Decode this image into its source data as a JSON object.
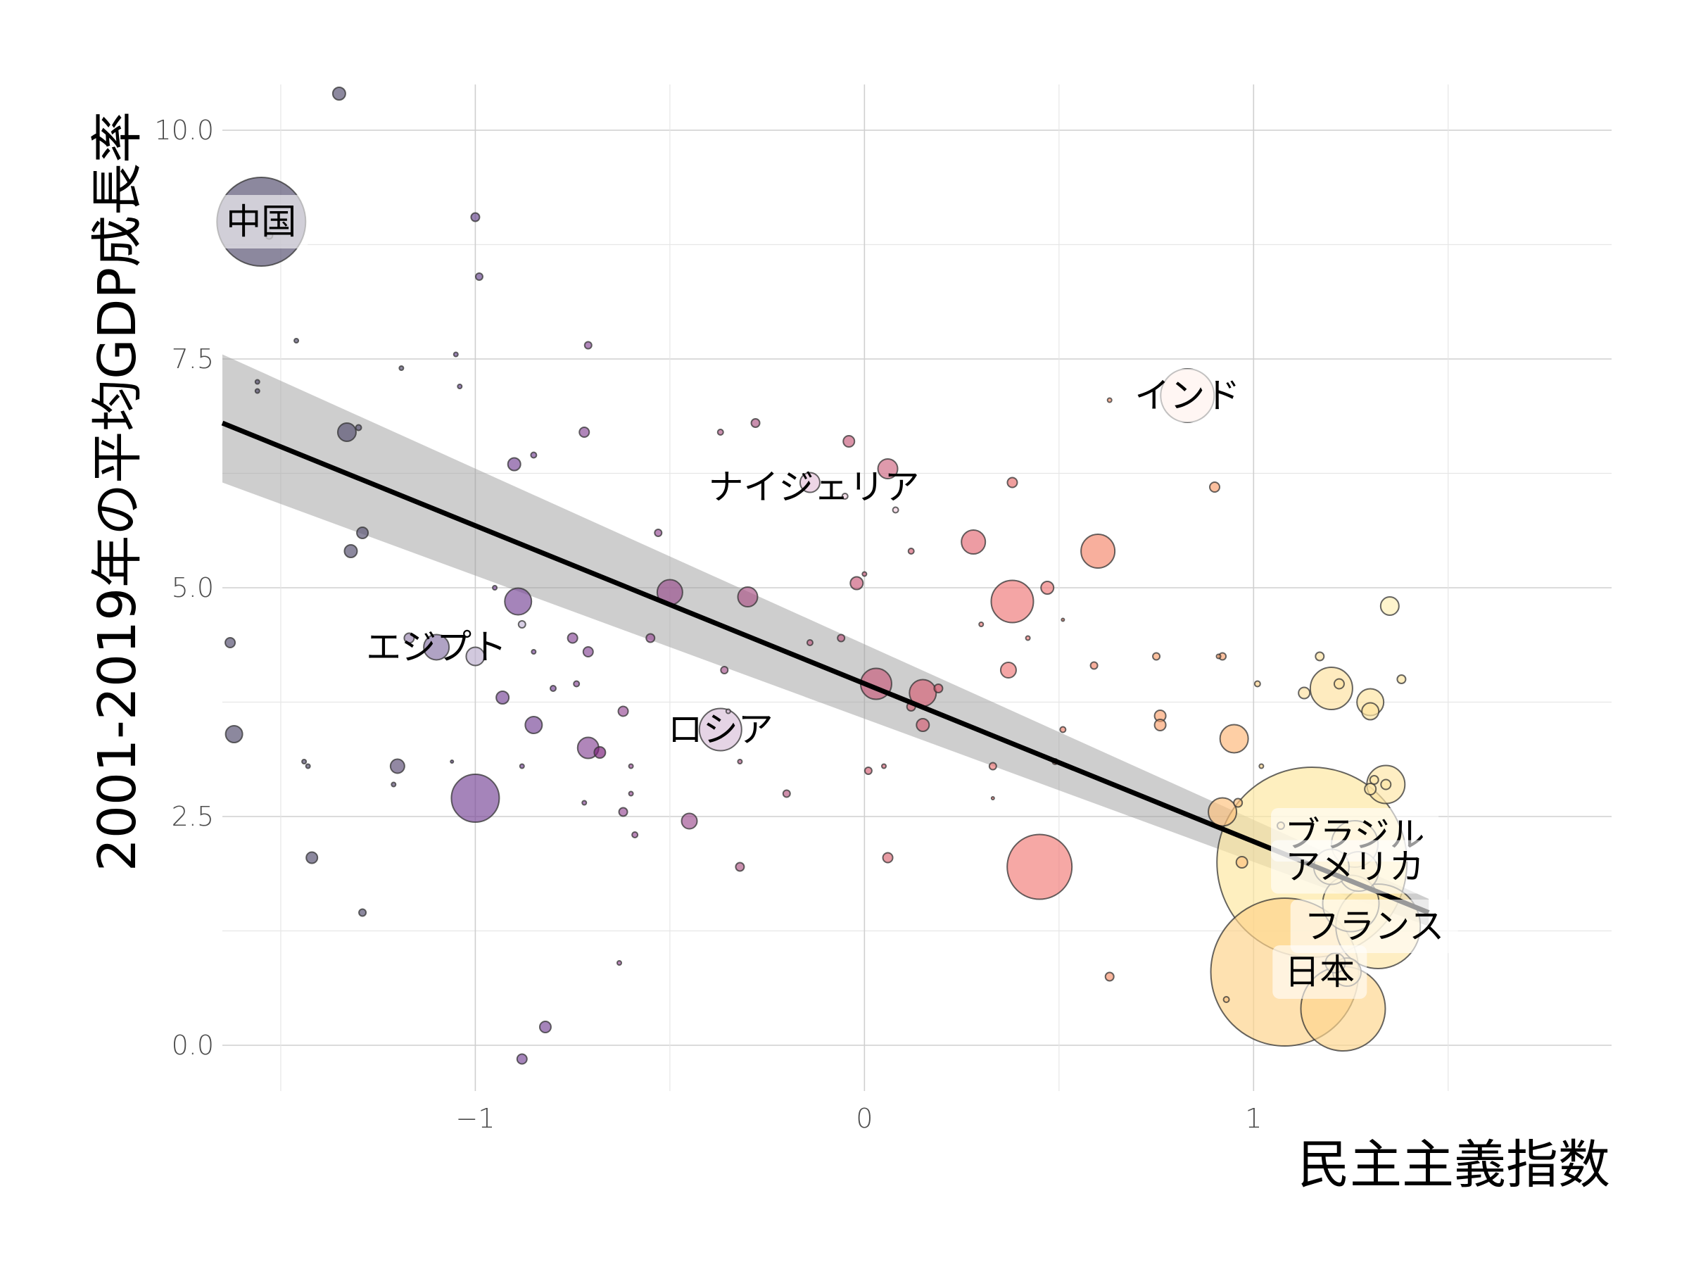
{
  "chart_data": {
    "type": "scatter",
    "xlabel": "民主主義指数",
    "ylabel": "2001-2019年の平均GDP成長率",
    "xlim": [
      -1.65,
      1.92
    ],
    "ylim": [
      -0.5,
      10.5
    ],
    "x_ticks": [
      -1,
      0,
      1
    ],
    "x_tick_labels": [
      "−1",
      "0",
      "1"
    ],
    "y_ticks": [
      0.0,
      2.5,
      5.0,
      7.5,
      10.0
    ],
    "y_tick_labels": [
      "0.0",
      "2.5",
      "5.0",
      "7.5",
      "10.0"
    ],
    "grid": true,
    "colors": {
      "low": "#565070",
      "mid_low": "#7b4a99",
      "mid": "#c05a85",
      "mid_high": "#ee6d6b",
      "high": "#fdb37a",
      "top": "#fde8a0"
    },
    "trend_line": {
      "x": [
        -1.65,
        1.45
      ],
      "y": [
        6.8,
        1.45
      ]
    },
    "confidence_band": {
      "x": [
        -1.65,
        1.45
      ],
      "upper": [
        7.55,
        1.6
      ],
      "lower": [
        6.15,
        1.3
      ]
    },
    "points": [
      {
        "x": -1.55,
        "y": 9.0,
        "size": 63,
        "color": "#565070"
      },
      {
        "x": -1.35,
        "y": 10.4,
        "size": 9,
        "color": "#565070"
      },
      {
        "x": -1.53,
        "y": 8.85,
        "size": 5,
        "color": "#7a7590"
      },
      {
        "x": -1.46,
        "y": 7.7,
        "size": 3,
        "color": "#565070"
      },
      {
        "x": -1.56,
        "y": 7.25,
        "size": 3,
        "color": "#565070"
      },
      {
        "x": -1.56,
        "y": 7.15,
        "size": 3,
        "color": "#565070"
      },
      {
        "x": -1.33,
        "y": 6.7,
        "size": 13,
        "color": "#565070"
      },
      {
        "x": -1.3,
        "y": 6.75,
        "size": 4,
        "color": "#565070"
      },
      {
        "x": -1.29,
        "y": 5.6,
        "size": 8,
        "color": "#565070"
      },
      {
        "x": -1.32,
        "y": 5.4,
        "size": 9,
        "color": "#565070"
      },
      {
        "x": -1.63,
        "y": 4.4,
        "size": 7,
        "color": "#565070"
      },
      {
        "x": -1.62,
        "y": 3.4,
        "size": 12,
        "color": "#565070"
      },
      {
        "x": -1.42,
        "y": 2.05,
        "size": 8,
        "color": "#565070"
      },
      {
        "x": -1.29,
        "y": 1.45,
        "size": 5,
        "color": "#565070"
      },
      {
        "x": -1.19,
        "y": 7.4,
        "size": 3,
        "color": "#565070"
      },
      {
        "x": -1.2,
        "y": 3.05,
        "size": 10,
        "color": "#5f5078"
      },
      {
        "x": -1.21,
        "y": 2.85,
        "size": 3,
        "color": "#5f5078"
      },
      {
        "x": -1.44,
        "y": 3.1,
        "size": 3,
        "color": "#565070"
      },
      {
        "x": -1.43,
        "y": 3.05,
        "size": 3,
        "color": "#565070"
      },
      {
        "x": -1.05,
        "y": 7.55,
        "size": 3,
        "color": "#6a4a90"
      },
      {
        "x": -1.04,
        "y": 7.2,
        "size": 3,
        "color": "#6a4a90"
      },
      {
        "x": -1.0,
        "y": 9.05,
        "size": 6,
        "color": "#6a4a90"
      },
      {
        "x": -0.99,
        "y": 8.4,
        "size": 5,
        "color": "#6a4a90"
      },
      {
        "x": -1.0,
        "y": 2.7,
        "size": 34,
        "color": "#7b4a99"
      },
      {
        "x": -1.06,
        "y": 3.1,
        "size": 2,
        "color": "#6a4a90"
      },
      {
        "x": -1.17,
        "y": 4.45,
        "size": 7,
        "color": "#9a86b0"
      },
      {
        "x": -1.1,
        "y": 4.35,
        "size": 18,
        "color": "#8a77a8"
      },
      {
        "x": -1.0,
        "y": 4.25,
        "size": 13,
        "color": "#bcb0cf"
      },
      {
        "x": -0.89,
        "y": 4.85,
        "size": 19,
        "color": "#7b4a99"
      },
      {
        "x": -0.88,
        "y": 4.6,
        "size": 5,
        "color": "#c6b8d8"
      },
      {
        "x": -0.95,
        "y": 5.0,
        "size": 3,
        "color": "#7b4a99"
      },
      {
        "x": -0.9,
        "y": 6.35,
        "size": 9,
        "color": "#7b4a99"
      },
      {
        "x": -0.85,
        "y": 6.45,
        "size": 4,
        "color": "#7b4a99"
      },
      {
        "x": -0.85,
        "y": 4.3,
        "size": 3,
        "color": "#7b4a99"
      },
      {
        "x": -0.93,
        "y": 3.8,
        "size": 9,
        "color": "#7b4a99"
      },
      {
        "x": -0.8,
        "y": 3.9,
        "size": 4,
        "color": "#7b4a99"
      },
      {
        "x": -0.85,
        "y": 3.5,
        "size": 12,
        "color": "#7b4a99"
      },
      {
        "x": -0.88,
        "y": 3.05,
        "size": 3,
        "color": "#7b4a99"
      },
      {
        "x": -0.82,
        "y": 0.2,
        "size": 8,
        "color": "#7b4a99"
      },
      {
        "x": -0.88,
        "y": -0.15,
        "size": 7,
        "color": "#7b4a99"
      },
      {
        "x": -0.71,
        "y": 7.65,
        "size": 5,
        "color": "#8a4d9a"
      },
      {
        "x": -0.72,
        "y": 6.7,
        "size": 7,
        "color": "#8a4d9a"
      },
      {
        "x": -0.75,
        "y": 4.45,
        "size": 7,
        "color": "#8a4d9a"
      },
      {
        "x": -0.71,
        "y": 4.3,
        "size": 7,
        "color": "#8a4d9a"
      },
      {
        "x": -0.74,
        "y": 3.95,
        "size": 4,
        "color": "#8a4d9a"
      },
      {
        "x": -0.71,
        "y": 3.25,
        "size": 15,
        "color": "#8a4d9a"
      },
      {
        "x": -0.68,
        "y": 3.2,
        "size": 8,
        "color": "#7a1f7a"
      },
      {
        "x": -0.72,
        "y": 2.65,
        "size": 3,
        "color": "#8a4d9a"
      },
      {
        "x": -0.62,
        "y": 3.65,
        "size": 7,
        "color": "#9a4f98"
      },
      {
        "x": -0.62,
        "y": 2.55,
        "size": 6,
        "color": "#9a4f98"
      },
      {
        "x": -0.6,
        "y": 2.75,
        "size": 3,
        "color": "#9a4f98"
      },
      {
        "x": -0.59,
        "y": 2.3,
        "size": 4,
        "color": "#9a4f98"
      },
      {
        "x": -0.6,
        "y": 3.05,
        "size": 3,
        "color": "#9a4f98"
      },
      {
        "x": -0.55,
        "y": 4.45,
        "size": 6,
        "color": "#9a4f98"
      },
      {
        "x": -0.53,
        "y": 5.6,
        "size": 5,
        "color": "#9a4f98"
      },
      {
        "x": -0.63,
        "y": 0.9,
        "size": 3,
        "color": "#9a4f98"
      },
      {
        "x": -0.5,
        "y": 4.95,
        "size": 18,
        "color": "#9a4f8e"
      },
      {
        "x": -0.45,
        "y": 2.45,
        "size": 11,
        "color": "#a05493"
      },
      {
        "x": -0.37,
        "y": 3.45,
        "size": 30,
        "color": "#d9bfd8"
      },
      {
        "x": -0.35,
        "y": 3.65,
        "size": 3,
        "color": "#d9bfd8"
      },
      {
        "x": -0.36,
        "y": 4.1,
        "size": 5,
        "color": "#a6558e"
      },
      {
        "x": -0.37,
        "y": 6.7,
        "size": 4,
        "color": "#b05a88"
      },
      {
        "x": -0.28,
        "y": 6.8,
        "size": 6,
        "color": "#b05a88"
      },
      {
        "x": -0.3,
        "y": 4.9,
        "size": 14,
        "color": "#ab5588"
      },
      {
        "x": -0.32,
        "y": 3.1,
        "size": 3,
        "color": "#b05a88"
      },
      {
        "x": -0.32,
        "y": 1.95,
        "size": 6,
        "color": "#b05a88"
      },
      {
        "x": -0.2,
        "y": 2.75,
        "size": 5,
        "color": "#b85c85"
      },
      {
        "x": -0.14,
        "y": 6.15,
        "size": 14,
        "color": "#e4c2da"
      },
      {
        "x": -0.05,
        "y": 6.0,
        "size": 4,
        "color": "#ebcbdc"
      },
      {
        "x": -0.14,
        "y": 4.4,
        "size": 4,
        "color": "#c15d84"
      },
      {
        "x": -0.06,
        "y": 4.45,
        "size": 5,
        "color": "#c15d84"
      },
      {
        "x": -0.04,
        "y": 6.6,
        "size": 8,
        "color": "#c8607f"
      },
      {
        "x": 0.06,
        "y": 6.3,
        "size": 14,
        "color": "#d06a84"
      },
      {
        "x": 0.08,
        "y": 5.85,
        "size": 4,
        "color": "#f1cfdf"
      },
      {
        "x": -0.02,
        "y": 5.05,
        "size": 9,
        "color": "#cc5f7d"
      },
      {
        "x": 0.0,
        "y": 5.15,
        "size": 3,
        "color": "#cc5f7d"
      },
      {
        "x": 0.03,
        "y": 3.95,
        "size": 22,
        "color": "#c95e7e"
      },
      {
        "x": 0.12,
        "y": 3.7,
        "size": 6,
        "color": "#d26578"
      },
      {
        "x": 0.15,
        "y": 3.85,
        "size": 19,
        "color": "#d66377"
      },
      {
        "x": 0.19,
        "y": 3.9,
        "size": 6,
        "color": "#d8566c"
      },
      {
        "x": 0.15,
        "y": 3.5,
        "size": 9,
        "color": "#d66377"
      },
      {
        "x": 0.12,
        "y": 5.4,
        "size": 4,
        "color": "#d66377"
      },
      {
        "x": 0.01,
        "y": 3.0,
        "size": 5,
        "color": "#d66377"
      },
      {
        "x": 0.05,
        "y": 3.05,
        "size": 3,
        "color": "#d66377"
      },
      {
        "x": 0.06,
        "y": 2.05,
        "size": 7,
        "color": "#dc6c78"
      },
      {
        "x": 0.28,
        "y": 5.5,
        "size": 17,
        "color": "#e56d78"
      },
      {
        "x": 0.38,
        "y": 6.15,
        "size": 7,
        "color": "#e8706f"
      },
      {
        "x": 0.38,
        "y": 4.85,
        "size": 30,
        "color": "#ef7b7b"
      },
      {
        "x": 0.47,
        "y": 5.0,
        "size": 9,
        "color": "#ef7b7b"
      },
      {
        "x": 0.3,
        "y": 4.6,
        "size": 3,
        "color": "#ef7b7b"
      },
      {
        "x": 0.42,
        "y": 4.45,
        "size": 3,
        "color": "#ef7b7b"
      },
      {
        "x": 0.37,
        "y": 4.1,
        "size": 11,
        "color": "#ef7b7b"
      },
      {
        "x": 0.33,
        "y": 3.05,
        "size": 5,
        "color": "#ef7b7b"
      },
      {
        "x": 0.33,
        "y": 2.7,
        "size": 2,
        "color": "#ef7b7b"
      },
      {
        "x": 0.45,
        "y": 1.95,
        "size": 46,
        "color": "#f27f7b"
      },
      {
        "x": 0.51,
        "y": 3.45,
        "size": 4,
        "color": "#f08570"
      },
      {
        "x": 0.49,
        "y": 3.1,
        "size": 4,
        "color": "#f08570"
      },
      {
        "x": 0.51,
        "y": 4.65,
        "size": 2,
        "color": "#f08570"
      },
      {
        "x": 0.6,
        "y": 5.4,
        "size": 24,
        "color": "#f4896f"
      },
      {
        "x": 0.59,
        "y": 4.15,
        "size": 5,
        "color": "#f4896f"
      },
      {
        "x": 0.63,
        "y": 0.75,
        "size": 6,
        "color": "#f8946f"
      },
      {
        "x": 0.63,
        "y": 7.05,
        "size": 3,
        "color": "#f8946f"
      },
      {
        "x": 0.83,
        "y": 7.1,
        "size": 38,
        "color": "#fddfd3"
      },
      {
        "x": 0.9,
        "y": 6.1,
        "size": 7,
        "color": "#f9a070"
      },
      {
        "x": 0.75,
        "y": 4.25,
        "size": 5,
        "color": "#fba471"
      },
      {
        "x": 0.76,
        "y": 3.6,
        "size": 8,
        "color": "#fba471"
      },
      {
        "x": 0.76,
        "y": 3.5,
        "size": 8,
        "color": "#fba471"
      },
      {
        "x": 0.92,
        "y": 4.25,
        "size": 5,
        "color": "#fba471"
      },
      {
        "x": 0.91,
        "y": 4.25,
        "size": 3,
        "color": "#fba471"
      },
      {
        "x": 0.95,
        "y": 3.35,
        "size": 20,
        "color": "#fdb87a"
      },
      {
        "x": 0.92,
        "y": 2.55,
        "size": 20,
        "color": "#fdc37f"
      },
      {
        "x": 0.96,
        "y": 2.65,
        "size": 6,
        "color": "#fdc37f"
      },
      {
        "x": 0.97,
        "y": 2.0,
        "size": 8,
        "color": "#fdc37f"
      },
      {
        "x": 0.93,
        "y": 0.5,
        "size": 4,
        "color": "#fdc37f"
      },
      {
        "x": 1.02,
        "y": 3.05,
        "size": 3,
        "color": "#fdd18a"
      },
      {
        "x": 1.01,
        "y": 3.95,
        "size": 4,
        "color": "#fdd18a"
      },
      {
        "x": 1.15,
        "y": 2.0,
        "size": 135,
        "color": "#fde8a0"
      },
      {
        "x": 1.08,
        "y": 0.8,
        "size": 105,
        "color": "#fdd38a"
      },
      {
        "x": 1.2,
        "y": 3.9,
        "size": 30,
        "color": "#fde1a0"
      },
      {
        "x": 1.13,
        "y": 3.85,
        "size": 8,
        "color": "#fde1a0"
      },
      {
        "x": 1.17,
        "y": 4.25,
        "size": 6,
        "color": "#fde1a0"
      },
      {
        "x": 1.22,
        "y": 3.95,
        "size": 7,
        "color": "#fde1a0"
      },
      {
        "x": 1.3,
        "y": 3.75,
        "size": 19,
        "color": "#fde4a0"
      },
      {
        "x": 1.3,
        "y": 3.65,
        "size": 12,
        "color": "#fde4a0"
      },
      {
        "x": 1.38,
        "y": 4.0,
        "size": 6,
        "color": "#fde4a0"
      },
      {
        "x": 1.35,
        "y": 4.8,
        "size": 13,
        "color": "#fdefb5"
      },
      {
        "x": 1.34,
        "y": 2.85,
        "size": 27,
        "color": "#fde6a6"
      },
      {
        "x": 1.3,
        "y": 2.8,
        "size": 8,
        "color": "#fde6a6"
      },
      {
        "x": 1.31,
        "y": 2.9,
        "size": 6,
        "color": "#fde6a6"
      },
      {
        "x": 1.34,
        "y": 2.85,
        "size": 7,
        "color": "#fde6a6"
      },
      {
        "x": 1.26,
        "y": 2.2,
        "size": 33,
        "color": "#fde6a6"
      },
      {
        "x": 1.27,
        "y": 1.9,
        "size": 28,
        "color": "#fde6a6"
      },
      {
        "x": 1.32,
        "y": 1.3,
        "size": 60,
        "color": "#fde6a6"
      },
      {
        "x": 1.25,
        "y": 1.55,
        "size": 40,
        "color": "#fde9ad"
      },
      {
        "x": 1.2,
        "y": 1.95,
        "size": 25,
        "color": "#fde9ad"
      },
      {
        "x": 1.23,
        "y": 0.4,
        "size": 60,
        "color": "#fdd68d"
      },
      {
        "x": 1.24,
        "y": 0.8,
        "size": 20,
        "color": "#fde1a0"
      },
      {
        "x": 1.21,
        "y": 0.9,
        "size": 14,
        "color": "#fde1a0"
      },
      {
        "x": 1.07,
        "y": 2.4,
        "size": 5,
        "color": "#fde1a0"
      }
    ],
    "annotations": [
      {
        "label": "中国",
        "x": -1.55,
        "y": 9.0,
        "boxed": true
      },
      {
        "label": "インド",
        "x": 0.83,
        "y": 7.1,
        "boxed": true
      },
      {
        "label": "ナイジェリア",
        "x": -0.13,
        "y": 6.1,
        "boxed": false
      },
      {
        "label": "エジプト",
        "x": -1.1,
        "y": 4.35,
        "boxed": false
      },
      {
        "label": "ロシア",
        "x": -0.37,
        "y": 3.45,
        "boxed": false
      },
      {
        "label": "ブラジル",
        "x": 1.26,
        "y": 2.3,
        "boxed": true
      },
      {
        "label": "アメリカ",
        "x": 1.26,
        "y": 1.95,
        "boxed": true
      },
      {
        "label": "フランス",
        "x": 1.31,
        "y": 1.3,
        "boxed": true
      },
      {
        "label": "日本",
        "x": 1.17,
        "y": 0.8,
        "boxed": true
      }
    ]
  }
}
